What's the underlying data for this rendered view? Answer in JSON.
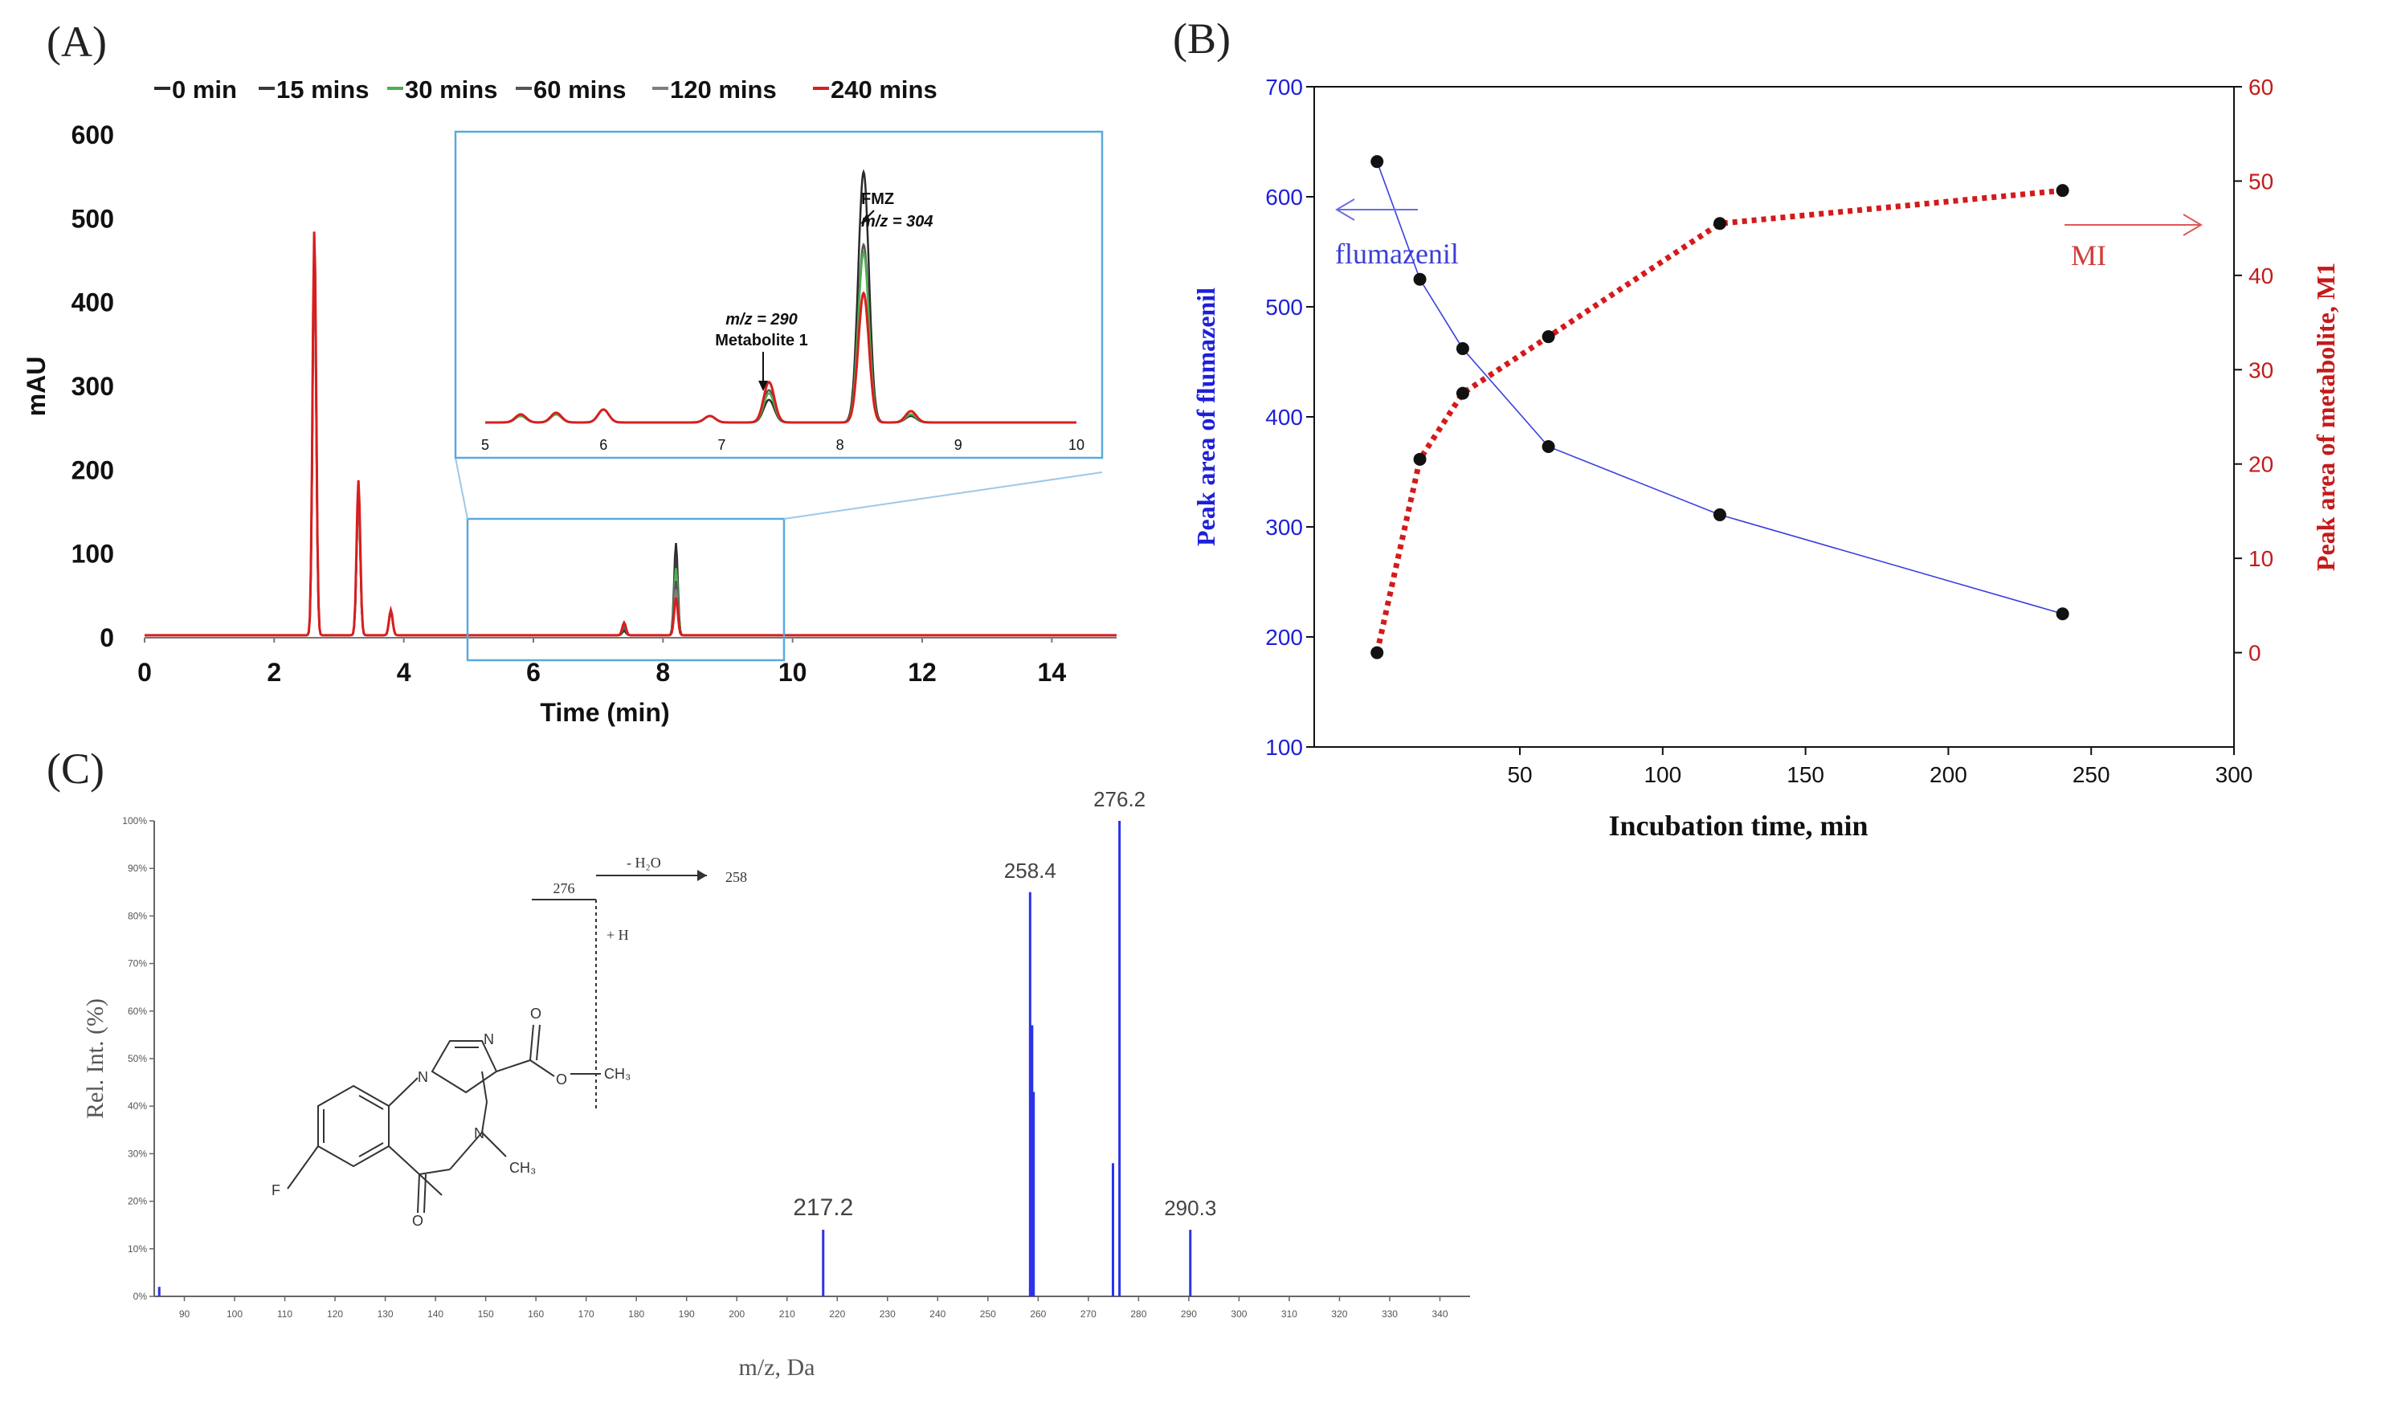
{
  "panels": {
    "a": "(A)",
    "b": "(B)",
    "c": "(C)"
  },
  "chart_data": [
    {
      "type": "line",
      "panel": "(A)",
      "xlabel": "Time (min)",
      "ylabel": "mAU",
      "xlim": [
        0,
        15
      ],
      "ylim": [
        0,
        600
      ],
      "x_ticks": [
        "0",
        "2",
        "4",
        "6",
        "8",
        "10",
        "12",
        "14"
      ],
      "y_ticks": [
        "0",
        "100",
        "200",
        "300",
        "400",
        "500",
        "600"
      ],
      "legend": {
        "placement": "top",
        "entries": [
          {
            "label": "0 min",
            "color": "#2a2a2a"
          },
          {
            "label": "15 mins",
            "color": "#3a3a3a"
          },
          {
            "label": "30 mins",
            "color": "#4caf50"
          },
          {
            "label": "60 mins",
            "color": "#555555"
          },
          {
            "label": "120 mins",
            "color": "#7f7f7f"
          },
          {
            "label": "240 mins",
            "color": "#d81e1e"
          }
        ]
      },
      "series": [
        {
          "name": "0 min",
          "color": "#2a2a2a",
          "peaks": [
            [
              2.62,
              470
            ],
            [
              3.3,
              170
            ],
            [
              3.8,
              28
            ],
            [
              7.4,
              5
            ],
            [
              8.2,
              110
            ]
          ]
        },
        {
          "name": "15 mins",
          "color": "#3a3a3a",
          "peaks": [
            [
              2.62,
              460
            ],
            [
              3.3,
              168
            ],
            [
              3.8,
              28
            ],
            [
              7.4,
              8
            ],
            [
              8.2,
              95
            ]
          ]
        },
        {
          "name": "30 mins",
          "color": "#4caf50",
          "peaks": [
            [
              2.62,
              455
            ],
            [
              3.3,
              165
            ],
            [
              3.8,
              28
            ],
            [
              7.4,
              10
            ],
            [
              8.2,
              80
            ]
          ]
        },
        {
          "name": "60 mins",
          "color": "#555555",
          "peaks": [
            [
              2.62,
              450
            ],
            [
              3.3,
              162
            ],
            [
              3.8,
              28
            ],
            [
              7.4,
              12
            ],
            [
              8.2,
              65
            ]
          ]
        },
        {
          "name": "120 mins",
          "color": "#7f7f7f",
          "peaks": [
            [
              2.62,
              445
            ],
            [
              3.3,
              160
            ],
            [
              3.8,
              28
            ],
            [
              7.4,
              14
            ],
            [
              8.2,
              55
            ]
          ]
        },
        {
          "name": "240 mins",
          "color": "#d81e1e",
          "peaks": [
            [
              2.62,
              485
            ],
            [
              3.3,
              185
            ],
            [
              3.8,
              30
            ],
            [
              7.4,
              15
            ],
            [
              8.2,
              45
            ]
          ]
        }
      ],
      "inset": {
        "xlim": [
          5,
          10
        ],
        "x_ticks": [
          "5",
          "6",
          "7",
          "8",
          "9",
          "10"
        ],
        "series": [
          {
            "name": "0 min",
            "color": "#2a2a2a",
            "peaks": [
              [
                5.3,
                4
              ],
              [
                5.6,
                5
              ],
              [
                6.0,
                8
              ],
              [
                6.9,
                4
              ],
              [
                7.4,
                14
              ],
              [
                8.2,
                155
              ],
              [
                8.6,
                4
              ]
            ]
          },
          {
            "name": "60 mins",
            "color": "#555555",
            "peaks": [
              [
                5.3,
                4
              ],
              [
                5.6,
                5
              ],
              [
                6.0,
                8
              ],
              [
                6.9,
                4
              ],
              [
                7.4,
                20
              ],
              [
                8.2,
                110
              ],
              [
                8.6,
                5
              ]
            ]
          },
          {
            "name": "30 mins",
            "color": "#4caf50",
            "peaks": [
              [
                5.3,
                4
              ],
              [
                5.6,
                5
              ],
              [
                6.0,
                8
              ],
              [
                6.9,
                4
              ],
              [
                7.4,
                18
              ],
              [
                8.2,
                105
              ],
              [
                8.6,
                5
              ]
            ]
          },
          {
            "name": "240 mins",
            "color": "#d81e1e",
            "peaks": [
              [
                5.3,
                5
              ],
              [
                5.6,
                6
              ],
              [
                6.0,
                8
              ],
              [
                6.9,
                4
              ],
              [
                7.4,
                25
              ],
              [
                8.2,
                80
              ],
              [
                8.6,
                7
              ]
            ]
          }
        ],
        "annotations": {
          "fmz_name": "FMZ",
          "fmz_mz": "m/z = 304",
          "met_mz": "m/z = 290",
          "met_name": "Metabolite 1"
        }
      }
    },
    {
      "type": "scatter",
      "panel": "(B)",
      "xlabel": "Incubation time, min",
      "ylabel_left": "Peak area of flumazenil",
      "ylabel_right": "Peak area of metabolite, M1",
      "xlim": [
        -22,
        300
      ],
      "ylim_left": [
        100,
        700
      ],
      "ylim_right": [
        -10,
        60
      ],
      "x_ticks": [
        "50",
        "100",
        "150",
        "200",
        "250",
        "300"
      ],
      "y_ticks_left": [
        "100",
        "200",
        "300",
        "400",
        "500",
        "600",
        "700"
      ],
      "y_ticks_right": [
        "0",
        "10",
        "20",
        "30",
        "40",
        "50",
        "60"
      ],
      "annotations": {
        "left": "flumazenil",
        "right": "MI"
      },
      "series": [
        {
          "name": "flumazenil",
          "axis": "left",
          "color": "#3a3fe0",
          "x": [
            0,
            15,
            30,
            60,
            120,
            240
          ],
          "y": [
            632,
            525,
            462,
            373,
            311,
            221
          ]
        },
        {
          "name": "MI",
          "axis": "right",
          "color": "#d41a1a",
          "x": [
            0,
            15,
            30,
            60,
            120,
            240
          ],
          "y": [
            0,
            20.5,
            27.5,
            33.5,
            45.5,
            49
          ]
        }
      ]
    },
    {
      "type": "bar",
      "panel": "(C)",
      "xlabel": "m/z, Da",
      "ylabel": "Rel. Int. (%)",
      "xlim": [
        84,
        346
      ],
      "ylim": [
        0,
        100
      ],
      "x_ticks": [
        "90",
        "100",
        "110",
        "120",
        "130",
        "140",
        "150",
        "160",
        "170",
        "180",
        "190",
        "200",
        "210",
        "220",
        "230",
        "240",
        "250",
        "260",
        "270",
        "280",
        "290",
        "300",
        "310",
        "320",
        "330",
        "340"
      ],
      "y_ticks": [
        "0%",
        "10%",
        "20%",
        "30%",
        "40%",
        "50%",
        "60%",
        "70%",
        "80%",
        "90%",
        "100%"
      ],
      "peaks": [
        {
          "mz": 85,
          "value": 2
        },
        {
          "mz": 217.2,
          "value": 14,
          "label": "217.2"
        },
        {
          "mz": 258.4,
          "value": 85,
          "label": "258.4"
        },
        {
          "mz": 258.8,
          "value": 57
        },
        {
          "mz": 259.1,
          "value": 43
        },
        {
          "mz": 274.9,
          "value": 28
        },
        {
          "mz": 276.2,
          "value": 100,
          "label": "276.2"
        },
        {
          "mz": 290.3,
          "value": 14,
          "label": "290.3"
        }
      ],
      "fragment": {
        "parent": "276",
        "loss": "- H₂O",
        "product": "258",
        "plus_h": "+ H"
      },
      "structure_labels": {
        "f": "F",
        "o1": "O",
        "o2": "O",
        "o3": "O",
        "n1": "N",
        "n2": "N",
        "n3": "N",
        "ch3_ester": "CH₃",
        "ch3_n": "CH₃"
      }
    }
  ]
}
